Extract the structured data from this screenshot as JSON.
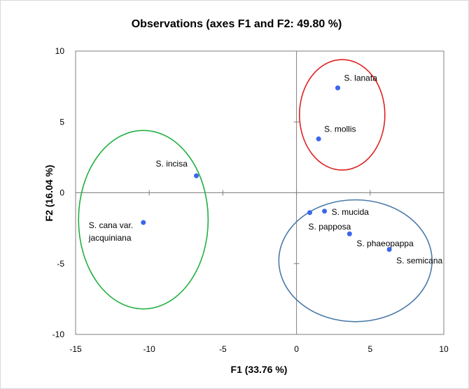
{
  "chart_data": {
    "type": "scatter",
    "title": "Observations (axes F1 and F2: 49.80 %)",
    "xlabel": "F1 (33.76 %)",
    "ylabel": "F2 (16.04 %)",
    "xlim": [
      -15,
      10
    ],
    "ylim": [
      -10,
      10
    ],
    "xticks": [
      "-15",
      "-10",
      "-5",
      "0",
      "5",
      "10"
    ],
    "yticks": [
      "-10",
      "-5",
      "0",
      "5",
      "10"
    ],
    "grid": false,
    "points": [
      {
        "label": "S. lanata",
        "x": 2.8,
        "y": 7.4
      },
      {
        "label": "S. mollis",
        "x": 1.5,
        "y": 3.8
      },
      {
        "label": "S. incisa",
        "x": -6.8,
        "y": 1.2
      },
      {
        "label": "S. cana var. jacquiniana",
        "label_lines": [
          "S. cana var.",
          "jacquiniana"
        ],
        "x": -10.4,
        "y": -2.1
      },
      {
        "label": "S. mucida",
        "x": 1.9,
        "y": -1.3
      },
      {
        "label": "S. papposa",
        "x": 0.9,
        "y": -1.4
      },
      {
        "label": "S. phaeopappa",
        "x": 3.6,
        "y": -2.9
      },
      {
        "label": "S. semicana",
        "x": 6.3,
        "y": -4.0
      }
    ],
    "groups": [
      {
        "members": [
          "S. lanata",
          "S. mollis"
        ],
        "color": "#e02020",
        "cx": 3.1,
        "cy": 5.5,
        "rx": 2.9,
        "ry": 3.9
      },
      {
        "members": [
          "S. incisa",
          "S. cana var. jacquiniana"
        ],
        "color": "#20b040",
        "cx": -10.4,
        "cy": -1.9,
        "rx": 4.4,
        "ry": 6.3
      },
      {
        "members": [
          "S. mucida",
          "S. papposa",
          "S. phaeopappa",
          "S. semicana"
        ],
        "color": "#4a7aa8",
        "cx": 4.0,
        "cy": -4.8,
        "rx": 5.2,
        "ry": 4.3
      }
    ],
    "point_color": "#3a66ee",
    "axis_color": "#7f7f7f"
  }
}
